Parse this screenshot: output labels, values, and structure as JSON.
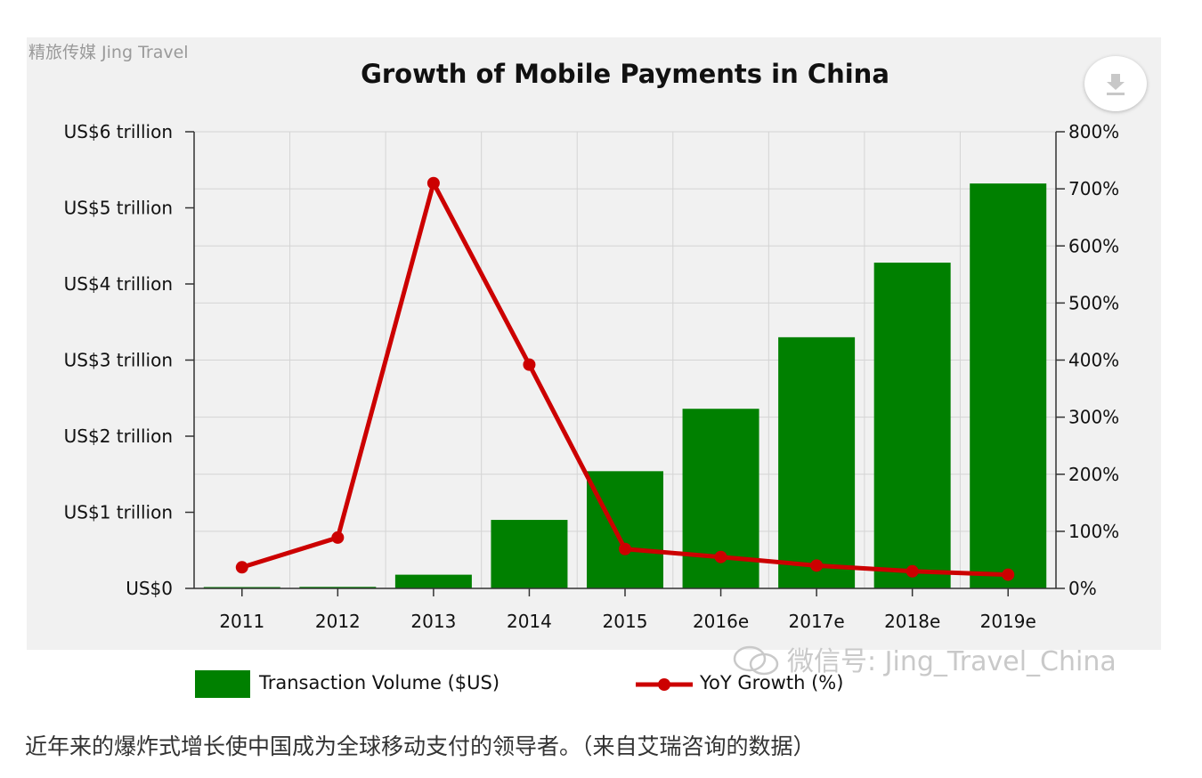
{
  "source_tag": "精旅传媒 Jing Travel",
  "icons": {
    "download": "download-icon",
    "wechat": "wechat-icon"
  },
  "colors": {
    "bar": "#008000",
    "line": "#cc0000",
    "panel": "#f1f1f1"
  },
  "watermark": "微信号: Jing_Travel_China",
  "caption": "近年来的爆炸式增长使中国成为全球移动支付的领导者。（来自艾瑞咨询的数据）",
  "chart_data": {
    "type": "bar",
    "title": "Growth of Mobile Payments in China",
    "categories": [
      "2011",
      "2012",
      "2013",
      "2014",
      "2015",
      "2016e",
      "2017e",
      "2018e",
      "2019e"
    ],
    "series": [
      {
        "name": "Transaction Volume ($US)",
        "type": "bar",
        "axis": "left",
        "values": [
          0.01,
          0.02,
          0.18,
          0.9,
          1.54,
          2.36,
          3.3,
          4.28,
          5.32
        ]
      },
      {
        "name": "YoY Growth (%)",
        "type": "line",
        "axis": "right",
        "values": [
          37,
          89,
          710,
          392,
          69,
          55,
          40,
          30,
          24
        ]
      }
    ],
    "y_left": {
      "ylim": [
        0,
        6
      ],
      "ticks": [
        0,
        1,
        2,
        3,
        4,
        5,
        6
      ],
      "tick_labels": [
        "US$0",
        "US$1 trillion",
        "US$2 trillion",
        "US$3 trillion",
        "US$4 trillion",
        "US$5 trillion",
        "US$6 trillion"
      ]
    },
    "y_right": {
      "ylim": [
        0,
        800
      ],
      "ticks": [
        0,
        100,
        200,
        300,
        400,
        500,
        600,
        700,
        800
      ],
      "tick_labels": [
        "0%",
        "100%",
        "200%",
        "300%",
        "400%",
        "500%",
        "600%",
        "700%",
        "800%"
      ]
    },
    "grid": true,
    "legend_position": "bottom"
  }
}
